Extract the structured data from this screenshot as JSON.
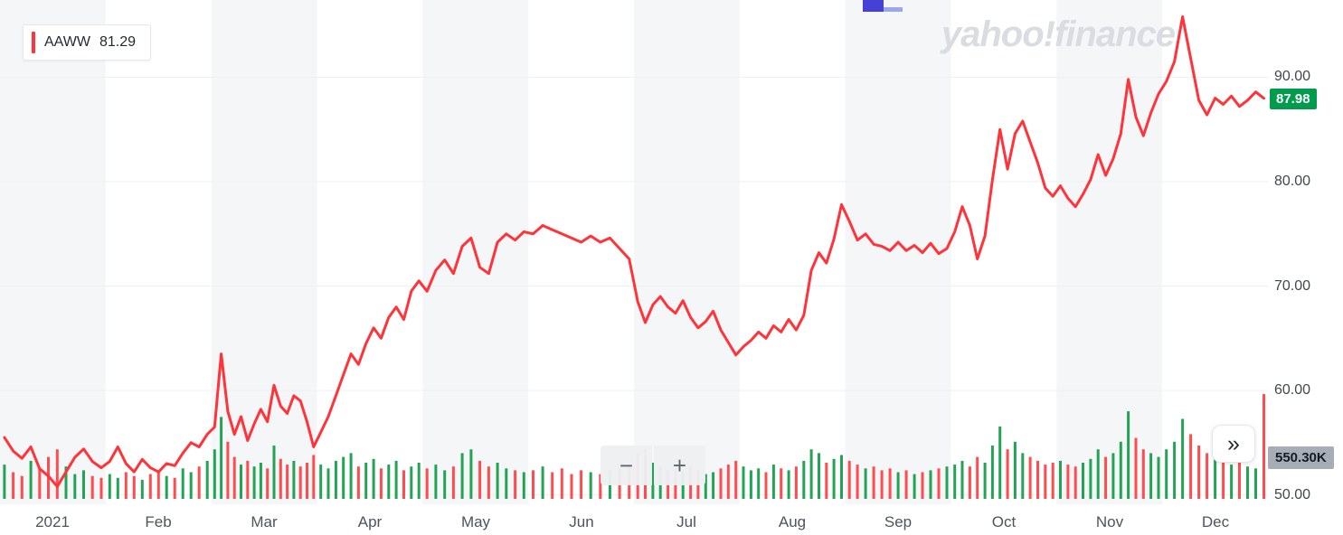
{
  "legend": {
    "symbol": "AAWW",
    "value": "81.29"
  },
  "watermark": "yahoo!finance",
  "badges": {
    "last_price": "87.98",
    "volume": "550.30K"
  },
  "controls": {
    "zoom_out": "−",
    "zoom_in": "+",
    "expand": "»"
  },
  "colors": {
    "line": "#ff333a",
    "volume_up": "#23a455",
    "volume_down": "#ff4d4f",
    "band": "#f5f6f7",
    "gridline": "#eef0f2",
    "price_badge_bg": "#009b4d",
    "volume_badge_bg": "#a7adb5",
    "watermark": "#d9dce1"
  },
  "chart_data": {
    "type": "line",
    "title": "AAWW stock price 2021 with daily volume",
    "symbol": "AAWW",
    "xlabel": "",
    "ylabel": "",
    "grid": true,
    "legend_position": "top-left",
    "ylim": [
      49.1,
      97.4
    ],
    "y_ticks": [
      90,
      80,
      70,
      60,
      50
    ],
    "y_tick_labels": [
      "90.00",
      "80.00",
      "70.00",
      "60.00",
      "50.00"
    ],
    "last_price": 87.98,
    "last_volume_k": 550.3,
    "volume_axis_max_k": 560,
    "line_color": "#ff333a",
    "volume_up_color": "#23a455",
    "volume_down_color": "#ff4d4f",
    "months": [
      {
        "month": "Jan",
        "tick_label": "2021",
        "prices": [
          55.5,
          54.2,
          53.5,
          54.6,
          52.5,
          51.8,
          50.8,
          52.2,
          53.6,
          54.4,
          53.2,
          52.6
        ],
        "volumes_k": [
          180,
          140,
          120,
          200,
          160,
          220,
          260,
          170,
          130,
          150,
          120,
          110
        ]
      },
      {
        "month": "Feb",
        "tick_label": "Feb",
        "prices": [
          53.2,
          54.6,
          53.0,
          52.2,
          53.4,
          52.6,
          52.2,
          53.0,
          52.8,
          54.0,
          55.0,
          54.6,
          55.8
        ],
        "volumes_k": [
          130,
          110,
          140,
          120,
          100,
          130,
          150,
          120,
          110,
          160,
          140,
          170,
          200
        ]
      },
      {
        "month": "Mar",
        "tick_label": "Mar",
        "prices": [
          56.5,
          63.5,
          58.0,
          55.8,
          57.5,
          55.2,
          56.8,
          58.2,
          57.0,
          60.5,
          58.5,
          57.8,
          59.5,
          59.0,
          57.0,
          54.6
        ],
        "volumes_k": [
          260,
          430,
          300,
          220,
          180,
          200,
          170,
          190,
          160,
          280,
          210,
          180,
          200,
          170,
          190,
          230
        ]
      },
      {
        "month": "Apr",
        "tick_label": "Apr",
        "prices": [
          56.0,
          57.5,
          59.5,
          61.5,
          63.5,
          62.5,
          64.5,
          66.0,
          65.0,
          67.0,
          68.0,
          66.8,
          69.5,
          70.5
        ],
        "volumes_k": [
          180,
          160,
          200,
          220,
          240,
          170,
          190,
          210,
          160,
          180,
          200,
          150,
          170,
          190
        ]
      },
      {
        "month": "May",
        "tick_label": "May",
        "prices": [
          69.5,
          71.5,
          72.5,
          71.2,
          73.8,
          74.6,
          71.8,
          71.2,
          74.2,
          75.0,
          74.4,
          75.2
        ],
        "volumes_k": [
          160,
          180,
          150,
          170,
          240,
          260,
          200,
          170,
          190,
          160,
          150,
          140
        ]
      },
      {
        "month": "Jun",
        "tick_label": "Jun",
        "prices": [
          75.0,
          75.8,
          75.4,
          75.0,
          74.6,
          74.2,
          74.8,
          74.2,
          74.6,
          73.6,
          72.6
        ],
        "volumes_k": [
          150,
          170,
          140,
          160,
          130,
          150,
          140,
          130,
          150,
          160,
          180
        ]
      },
      {
        "month": "Jul",
        "tick_label": "Jul",
        "prices": [
          68.5,
          66.5,
          68.2,
          69.0,
          68.0,
          67.4,
          68.6,
          67.0,
          66.0,
          66.6,
          67.6,
          65.8,
          64.6,
          63.4
        ],
        "volumes_k": [
          240,
          260,
          190,
          170,
          150,
          160,
          140,
          170,
          150,
          130,
          140,
          160,
          180,
          200
        ]
      },
      {
        "month": "Aug",
        "tick_label": "Aug",
        "prices": [
          64.2,
          64.8,
          65.6,
          65.0,
          66.2,
          65.6,
          66.8,
          65.8,
          67.2,
          71.5,
          73.2,
          72.2,
          74.5,
          77.8
        ],
        "volumes_k": [
          170,
          150,
          160,
          140,
          180,
          160,
          150,
          170,
          200,
          260,
          240,
          190,
          210,
          230
        ]
      },
      {
        "month": "Sep",
        "tick_label": "Sep",
        "prices": [
          76.2,
          74.4,
          75.0,
          74.0,
          73.8,
          73.4,
          74.2,
          73.4,
          73.9,
          73.2,
          74.1,
          73.1,
          73.6
        ],
        "volumes_k": [
          200,
          180,
          160,
          170,
          150,
          160,
          140,
          150,
          130,
          140,
          150,
          160,
          170
        ]
      },
      {
        "month": "Oct",
        "tick_label": "Oct",
        "prices": [
          75.2,
          77.6,
          75.8,
          72.6,
          74.8,
          80.2,
          85.0,
          81.2,
          84.6,
          85.8,
          83.8,
          81.8,
          79.4,
          78.6
        ],
        "volumes_k": [
          180,
          200,
          170,
          220,
          190,
          280,
          380,
          260,
          300,
          240,
          220,
          200,
          180,
          190
        ]
      },
      {
        "month": "Nov",
        "tick_label": "Nov",
        "prices": [
          79.6,
          78.4,
          77.6,
          78.8,
          80.2,
          82.6,
          80.6,
          82.2,
          84.6,
          89.8,
          86.2,
          84.4,
          86.6,
          88.4
        ],
        "volumes_k": [
          200,
          180,
          170,
          190,
          210,
          260,
          220,
          240,
          300,
          460,
          320,
          260,
          240,
          220
        ]
      },
      {
        "month": "Dec",
        "tick_label": "Dec",
        "prices": [
          89.6,
          91.5,
          95.8,
          91.8,
          87.8,
          86.4,
          88.0,
          87.4,
          88.2,
          87.2,
          87.8,
          88.6,
          87.98
        ],
        "volumes_k": [
          260,
          300,
          420,
          340,
          280,
          240,
          220,
          200,
          180,
          190,
          170,
          160,
          550
        ]
      }
    ]
  }
}
